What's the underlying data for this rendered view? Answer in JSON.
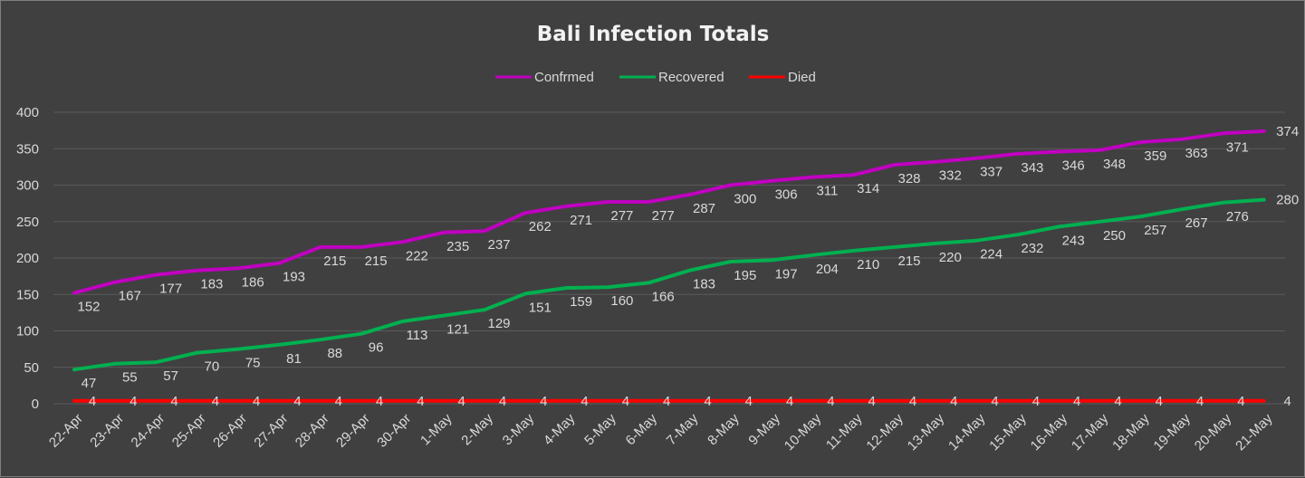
{
  "chart_data": {
    "type": "line",
    "title": "Bali Infection Totals",
    "xlabel": "",
    "ylabel": "",
    "ylim": [
      0,
      400
    ],
    "yticks": [
      0,
      50,
      100,
      150,
      200,
      250,
      300,
      350,
      400
    ],
    "grid": true,
    "legend_position": "top",
    "categories": [
      "22-Apr",
      "23-Apr",
      "24-Apr",
      "25-Apr",
      "26-Apr",
      "27-Apr",
      "28-Apr",
      "29-Apr",
      "30-Apr",
      "1-May",
      "2-May",
      "3-May",
      "4-May",
      "5-May",
      "6-May",
      "7-May",
      "8-May",
      "9-May",
      "10-May",
      "11-May",
      "12-May",
      "13-May",
      "14-May",
      "15-May",
      "16-May",
      "17-May",
      "18-May",
      "19-May",
      "20-May",
      "21-May"
    ],
    "series": [
      {
        "name": "Confrmed",
        "color": "#c000c0",
        "values": [
          152,
          167,
          177,
          183,
          186,
          193,
          215,
          215,
          222,
          235,
          237,
          262,
          271,
          277,
          277,
          287,
          300,
          306,
          311,
          314,
          328,
          332,
          337,
          343,
          346,
          348,
          359,
          363,
          371,
          374
        ]
      },
      {
        "name": "Recovered",
        "color": "#00b050",
        "values": [
          47,
          55,
          57,
          70,
          75,
          81,
          88,
          96,
          113,
          121,
          129,
          151,
          159,
          160,
          166,
          183,
          195,
          197,
          204,
          210,
          215,
          220,
          224,
          232,
          243,
          250,
          257,
          267,
          276,
          280
        ]
      },
      {
        "name": "Died",
        "color": "#ff0000",
        "values": [
          4,
          4,
          4,
          4,
          4,
          4,
          4,
          4,
          4,
          4,
          4,
          4,
          4,
          4,
          4,
          4,
          4,
          4,
          4,
          4,
          4,
          4,
          4,
          4,
          4,
          4,
          4,
          4,
          4,
          4
        ]
      }
    ]
  }
}
